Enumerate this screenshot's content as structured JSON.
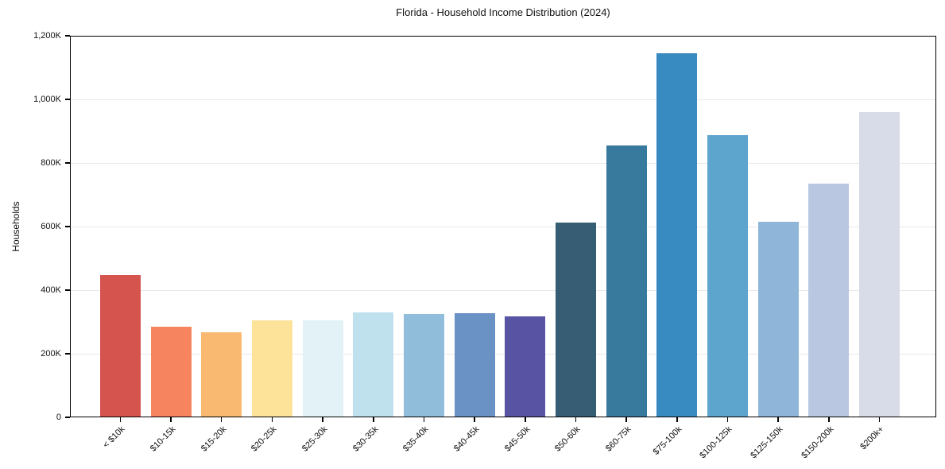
{
  "chart_data": {
    "type": "bar",
    "title": "Florida - Household Income Distribution (2024)",
    "xlabel": "",
    "ylabel": "Households",
    "categories": [
      "< $10k",
      "$10-15k",
      "$15-20k",
      "$20-25k",
      "$25-30k",
      "$30-35k",
      "$35-40k",
      "$40-45k",
      "$45-50k",
      "$50-60k",
      "$60-75k",
      "$75-100k",
      "$100-125k",
      "$125-150k",
      "$150-200k",
      "$200k+"
    ],
    "values": [
      448000,
      285000,
      267000,
      306000,
      305000,
      330000,
      326000,
      327000,
      318000,
      613000,
      856000,
      1144000,
      888000,
      614000,
      736000,
      960000
    ],
    "bar_colors": [
      "#d6544e",
      "#f5845f",
      "#fab970",
      "#fde39a",
      "#e2f2f7",
      "#bfe1ee",
      "#90bdda",
      "#6b92c4",
      "#5953a3",
      "#365d73",
      "#387a9e",
      "#378bc1",
      "#5ea5ce",
      "#8fb6d8",
      "#bac7e0",
      "#d8dbe8"
    ],
    "ylim": [
      0,
      1200000
    ],
    "yticks": [
      {
        "value": 0,
        "label": "0"
      },
      {
        "value": 200000,
        "label": "200K"
      },
      {
        "value": 400000,
        "label": "400K"
      },
      {
        "value": 600000,
        "label": "600K"
      },
      {
        "value": 800000,
        "label": "800K"
      },
      {
        "value": 1000000,
        "label": "1,000K"
      },
      {
        "value": 1200000,
        "label": "1,200K"
      }
    ],
    "grid": "horizontal-only",
    "legend": "none"
  },
  "colors": {
    "background": "#ffffff",
    "spine": "#000000",
    "gridline": "#e8e8e8",
    "text": "#111111"
  }
}
